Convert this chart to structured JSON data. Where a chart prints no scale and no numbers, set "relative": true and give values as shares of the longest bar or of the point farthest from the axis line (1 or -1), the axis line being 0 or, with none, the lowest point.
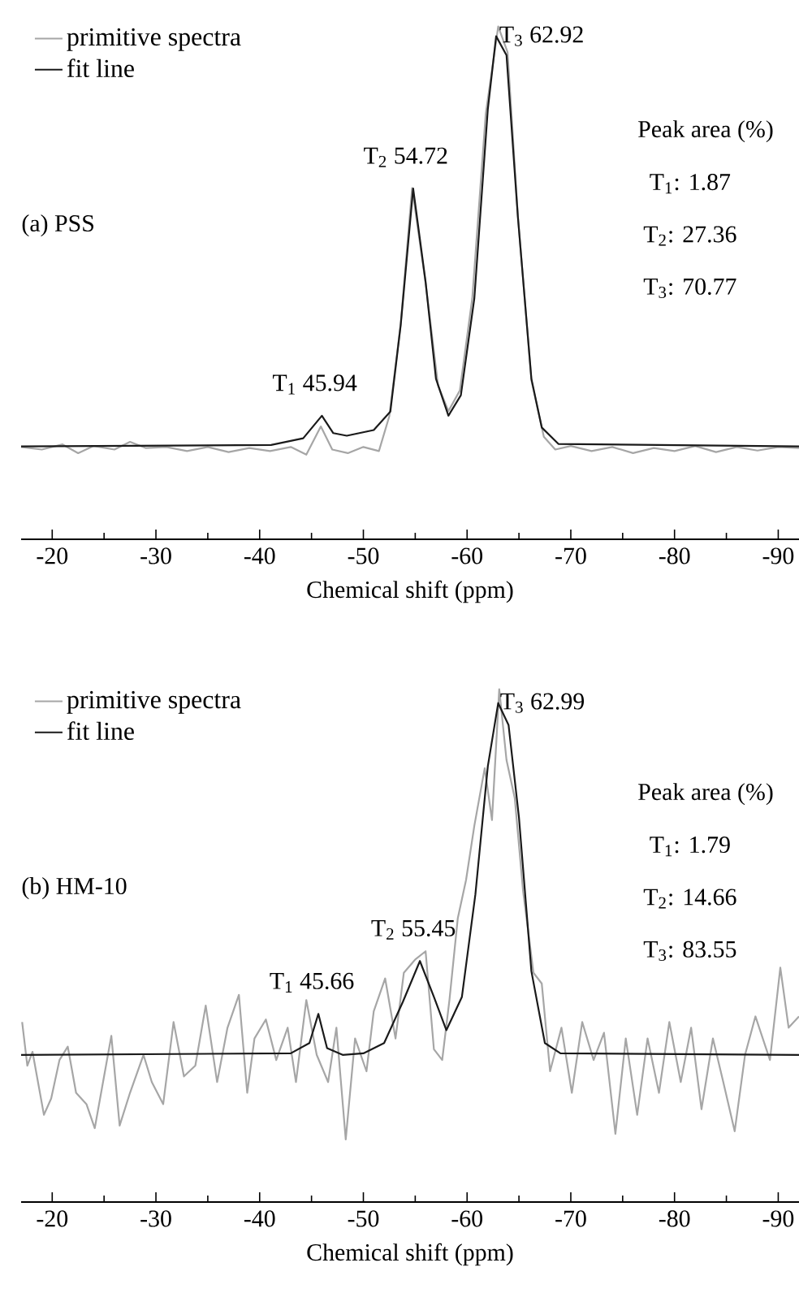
{
  "chart_data": [
    {
      "type": "line",
      "relative": true,
      "xlabel": "Chemical shift (ppm)",
      "xlim": [
        -17,
        -92
      ],
      "xticks": [
        -20,
        {
          "value": -25,
          "label": null
        },
        -30,
        {
          "value": -35,
          "label": null
        },
        -40,
        {
          "value": -45,
          "label": null
        },
        -50,
        {
          "value": -55,
          "label": null
        },
        -60,
        {
          "value": -65,
          "label": null
        },
        -70,
        {
          "value": -75,
          "label": null
        },
        -80,
        {
          "value": -85,
          "label": null
        },
        -90
      ],
      "tick_labels": "x",
      "grid": false,
      "legend": "top left",
      "marker": "none",
      "line_style": "solid",
      "series": [
        {
          "name": "primitive spectra",
          "color": "#a6a6a6",
          "x": [
            -17,
            -19,
            -21,
            -22.5,
            -24,
            -26,
            -27.5,
            -29,
            -31,
            -33,
            -35,
            -37,
            -39,
            -41,
            -43,
            -44.5,
            -45.9,
            -47,
            -48.5,
            -50,
            -51.5,
            -52.5,
            -53.6,
            -54.7,
            -56,
            -57.2,
            -58.2,
            -59.3,
            -60.5,
            -61.8,
            -63,
            -63.9,
            -64.9,
            -66.2,
            -67.4,
            -68.5,
            -70,
            -72,
            -74,
            -76,
            -78,
            -80,
            -82,
            -84,
            -86,
            -88,
            -90,
            -92
          ],
          "values": [
            0.18,
            0.175,
            0.185,
            0.168,
            0.182,
            0.175,
            0.19,
            0.178,
            0.18,
            0.172,
            0.18,
            0.17,
            0.178,
            0.172,
            0.18,
            0.165,
            0.22,
            0.175,
            0.168,
            0.18,
            0.172,
            0.24,
            0.42,
            0.685,
            0.5,
            0.3,
            0.25,
            0.29,
            0.47,
            0.83,
            1.0,
            0.95,
            0.63,
            0.31,
            0.2,
            0.175,
            0.182,
            0.172,
            0.18,
            0.168,
            0.178,
            0.172,
            0.182,
            0.17,
            0.18,
            0.173,
            0.18,
            0.178
          ]
        },
        {
          "name": "fit line",
          "color": "#1a1a1a",
          "x": [
            -17,
            -41.1,
            -44.2,
            -46.0,
            -47.1,
            -48.4,
            -51.0,
            -52.6,
            -53.6,
            -54.8,
            -56.0,
            -57.0,
            -58.2,
            -59.4,
            -60.7,
            -62.0,
            -62.8,
            -63.8,
            -64.9,
            -66.2,
            -67.2,
            -68.8,
            -92
          ],
          "values": [
            0.181,
            0.184,
            0.197,
            0.241,
            0.207,
            0.202,
            0.213,
            0.249,
            0.418,
            0.684,
            0.502,
            0.313,
            0.241,
            0.281,
            0.47,
            0.839,
            0.981,
            0.944,
            0.628,
            0.313,
            0.218,
            0.186,
            0.181
          ]
        }
      ],
      "annotations": [
        "(a) PSS",
        "Peak area (%)",
        "T$_{1}$: 1.87",
        "T$_{2}$: 27.36",
        "T$_{3}$: 70.77",
        {
          "text": "T$_{1}$ 45.94",
          "x": -45.94,
          "y": 0.241
        },
        {
          "text": "T$_{2}$ 54.72",
          "x": -54.72,
          "y": 0.684
        },
        {
          "text": "T$_{3}$ 62.92",
          "x": -62.92,
          "y": 0.981
        }
      ]
    },
    {
      "type": "line",
      "relative": true,
      "xlabel": "Chemical shift (ppm)",
      "xlim": [
        -17,
        -92
      ],
      "xticks": [
        -20,
        {
          "value": -25,
          "label": null
        },
        -30,
        {
          "value": -35,
          "label": null
        },
        -40,
        {
          "value": -45,
          "label": null
        },
        -50,
        {
          "value": -55,
          "label": null
        },
        -60,
        {
          "value": -65,
          "label": null
        },
        -70,
        {
          "value": -75,
          "label": null
        },
        -80,
        {
          "value": -85,
          "label": null
        },
        -90
      ],
      "tick_labels": "x",
      "grid": false,
      "legend": "top left",
      "marker": "none",
      "line_style": "solid",
      "series": [
        {
          "name": "primitive spectra",
          "color": "#a6a6a6",
          "x": [
            -17.1,
            -17.6,
            -18.1,
            -19.2,
            -19.9,
            -20.7,
            -21.5,
            -22.3,
            -23.3,
            -24.1,
            -24.9,
            -25.7,
            -26.5,
            -27.5,
            -28.8,
            -29.6,
            -30.7,
            -31.7,
            -32.7,
            -33.8,
            -34.8,
            -35.9,
            -36.9,
            -38.0,
            -38.8,
            -39.5,
            -40.6,
            -41.6,
            -42.7,
            -43.5,
            -44.5,
            -45.5,
            -46.6,
            -47.4,
            -48.3,
            -49.2,
            -50.3,
            -51.0,
            -52.1,
            -53.1,
            -53.9,
            -55.0,
            -56.0,
            -56.8,
            -57.6,
            -58.3,
            -59.1,
            -59.9,
            -60.7,
            -61.7,
            -62.4,
            -63.1,
            -63.8,
            -64.6,
            -65.4,
            -66.4,
            -67.2,
            -68.0,
            -69.1,
            -70.1,
            -71.1,
            -72.2,
            -73.2,
            -74.3,
            -75.3,
            -76.4,
            -77.4,
            -78.5,
            -79.5,
            -80.6,
            -81.6,
            -82.6,
            -83.7,
            -84.7,
            -85.8,
            -86.8,
            -87.8,
            -89.2,
            -90.2,
            -91.0,
            -92
          ],
          "values": [
            0.351,
            0.266,
            0.293,
            0.17,
            0.202,
            0.277,
            0.303,
            0.213,
            0.191,
            0.144,
            0.234,
            0.324,
            0.149,
            0.213,
            0.287,
            0.234,
            0.191,
            0.351,
            0.245,
            0.266,
            0.383,
            0.234,
            0.34,
            0.404,
            0.213,
            0.319,
            0.356,
            0.277,
            0.34,
            0.234,
            0.394,
            0.287,
            0.234,
            0.34,
            0.122,
            0.319,
            0.255,
            0.372,
            0.436,
            0.319,
            0.447,
            0.473,
            0.489,
            0.298,
            0.277,
            0.394,
            0.553,
            0.628,
            0.734,
            0.846,
            0.745,
            1.0,
            0.862,
            0.787,
            0.606,
            0.447,
            0.426,
            0.255,
            0.34,
            0.213,
            0.351,
            0.277,
            0.33,
            0.133,
            0.319,
            0.17,
            0.319,
            0.213,
            0.351,
            0.234,
            0.34,
            0.181,
            0.319,
            0.234,
            0.138,
            0.287,
            0.362,
            0.277,
            0.457,
            0.34,
            0.362
          ]
        },
        {
          "name": "fit line",
          "color": "#1a1a1a",
          "x": [
            -17,
            -43,
            -44.8,
            -45.66,
            -46.5,
            -48,
            -50,
            -52,
            -53.8,
            -55.45,
            -56.8,
            -58,
            -59.5,
            -60.8,
            -62,
            -63,
            -64,
            -65,
            -66.2,
            -67.5,
            -69,
            -92
          ],
          "values": [
            0.287,
            0.29,
            0.31,
            0.367,
            0.3,
            0.287,
            0.29,
            0.31,
            0.39,
            0.47,
            0.4,
            0.335,
            0.4,
            0.6,
            0.85,
            0.973,
            0.93,
            0.75,
            0.45,
            0.31,
            0.29,
            0.287
          ]
        }
      ],
      "annotations": [
        "(b) HM-10",
        "Peak area (%)",
        "T$_{1}$: 1.79",
        "T$_{2}$: 14.66",
        "T$_{3}$: 83.55",
        {
          "text": "T$_{1}$ 45.66",
          "x": -45.66,
          "y": 0.367
        },
        {
          "text": "T$_{2}$ 55.45",
          "x": -55.45,
          "y": 0.47
        },
        {
          "text": "T$_{3}$ 62.99",
          "x": -62.99,
          "y": 0.973
        }
      ]
    }
  ]
}
